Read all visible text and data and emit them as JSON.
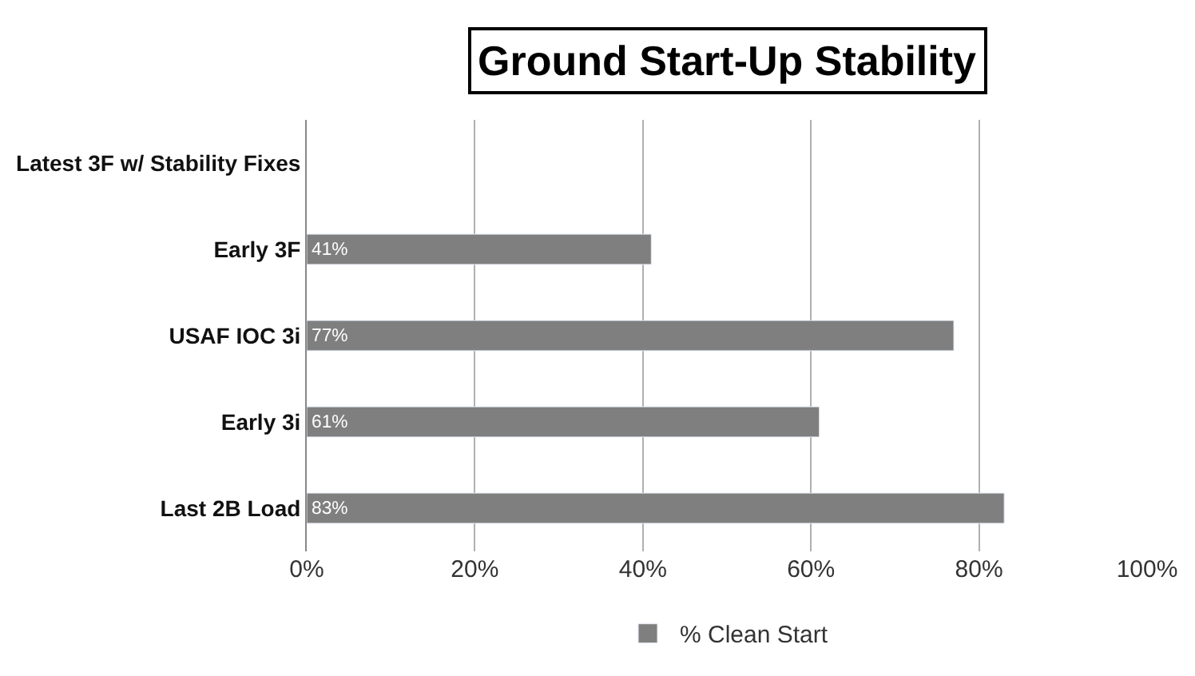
{
  "chart_data": {
    "type": "bar",
    "orientation": "horizontal",
    "title": "Ground Start-Up Stability",
    "categories": [
      "Latest 3F w/ Stability Fixes",
      "Early 3F",
      "USAF IOC 3i",
      "Early 3i",
      "Last 2B Load"
    ],
    "series": [
      {
        "name": "% Clean Start",
        "color": "#7f7f7f",
        "values": [
          null,
          41,
          77,
          61,
          83
        ],
        "value_labels": [
          null,
          "41%",
          "77%",
          "61%",
          "83%"
        ]
      }
    ],
    "xlim": [
      0,
      100
    ],
    "xticks": [
      {
        "value": 0,
        "label": "0%"
      },
      {
        "value": 20,
        "label": "20%"
      },
      {
        "value": 40,
        "label": "40%"
      },
      {
        "value": 60,
        "label": "60%"
      },
      {
        "value": 80,
        "label": "80%"
      },
      {
        "value": 100,
        "label": "100%"
      }
    ],
    "grid": "x",
    "legend": "bottom"
  }
}
